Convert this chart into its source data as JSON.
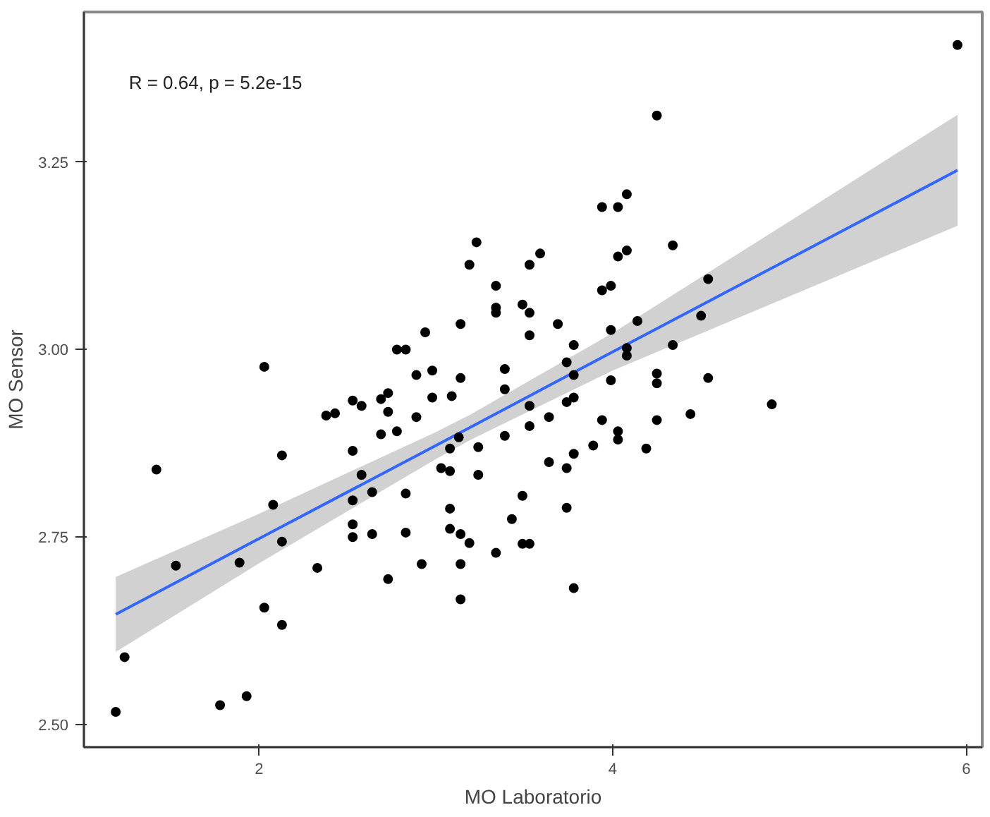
{
  "chart_data": {
    "type": "scatter",
    "xlabel": "MO Laboratorio",
    "ylabel": "MO Sensor",
    "annotations": [
      "R = 0.64, p = 5.2e-15"
    ],
    "xlim": [
      1.01,
      6.09
    ],
    "ylim": [
      2.47,
      3.45
    ],
    "xticks": [
      2,
      4,
      6
    ],
    "yticks": [
      {
        "value": 2.5,
        "label": "2.50"
      },
      {
        "value": 2.75,
        "label": "2.75"
      },
      {
        "value": 3.0,
        "label": "3.00"
      },
      {
        "value": 3.25,
        "label": "3.25"
      }
    ],
    "grid": false,
    "marker": "circle",
    "series": [
      {
        "color": "#000000",
        "x": [
          1.42,
          1.53,
          1.19,
          1.24,
          1.78,
          1.93,
          2.03,
          2.13,
          2.08,
          2.13,
          2.13,
          1.89,
          2.33,
          2.38,
          2.43,
          2.53,
          2.58,
          2.69,
          2.73,
          2.73,
          2.69,
          2.78,
          2.89,
          2.98,
          3.09,
          2.53,
          2.58,
          2.64,
          2.53,
          2.53,
          2.53,
          2.64,
          2.83,
          2.83,
          2.73,
          2.92,
          3.03,
          3.08,
          3.08,
          3.13,
          3.24,
          3.24,
          3.39,
          3.08,
          3.08,
          3.14,
          3.19,
          3.14,
          3.14,
          3.34,
          3.43,
          3.49,
          3.49,
          3.53,
          3.53,
          3.53,
          2.03,
          3.23,
          3.19,
          3.53,
          3.34,
          3.34,
          3.34,
          3.49,
          3.53,
          3.53,
          2.94,
          3.14,
          2.78,
          2.83,
          2.89,
          2.98,
          3.14,
          3.39,
          3.39,
          5.95,
          4.25,
          3.94,
          4.03,
          4.08,
          4.34,
          4.03,
          4.08,
          3.59,
          3.94,
          3.99,
          4.54,
          3.69,
          3.99,
          4.14,
          4.5,
          3.78,
          4.08,
          4.34,
          4.08,
          3.74,
          3.78,
          3.99,
          4.25,
          4.25,
          4.54,
          3.74,
          3.78,
          3.64,
          3.94,
          4.25,
          4.44,
          4.9,
          4.03,
          4.03,
          4.19,
          3.89,
          3.78,
          3.74,
          3.64,
          3.74,
          3.78
        ],
        "values": [
          2.84,
          2.712,
          2.517,
          2.59,
          2.526,
          2.538,
          2.656,
          2.633,
          2.793,
          2.744,
          2.859,
          2.716,
          2.709,
          2.912,
          2.915,
          2.932,
          2.925,
          2.934,
          2.942,
          2.917,
          2.887,
          2.891,
          2.91,
          2.936,
          2.938,
          2.865,
          2.833,
          2.81,
          2.799,
          2.767,
          2.75,
          2.754,
          2.808,
          2.756,
          2.694,
          2.714,
          2.842,
          2.838,
          2.868,
          2.883,
          2.87,
          2.833,
          2.885,
          2.788,
          2.761,
          2.754,
          2.742,
          2.714,
          2.667,
          2.729,
          2.774,
          2.805,
          2.741,
          2.741,
          2.898,
          2.925,
          2.977,
          3.143,
          3.113,
          3.113,
          3.085,
          3.056,
          3.049,
          3.06,
          3.049,
          3.019,
          3.023,
          3.034,
          3.0,
          3.0,
          2.966,
          2.972,
          2.962,
          2.974,
          2.947,
          3.406,
          3.312,
          3.19,
          3.19,
          3.207,
          3.139,
          3.124,
          3.132,
          3.128,
          3.079,
          3.085,
          3.094,
          3.034,
          3.026,
          3.038,
          3.045,
          3.006,
          3.002,
          3.006,
          2.992,
          2.983,
          2.966,
          2.959,
          2.968,
          2.955,
          2.962,
          2.93,
          2.936,
          2.91,
          2.906,
          2.906,
          2.914,
          2.927,
          2.891,
          2.88,
          2.868,
          2.872,
          2.861,
          2.842,
          2.85,
          2.789,
          2.682
        ]
      },
      {
        "type": "line",
        "marker": "none",
        "color": "#3366ff",
        "x": [
          1.19,
          2,
          3,
          3.2,
          4,
          5,
          5.95
        ],
        "values": [
          2.647,
          2.748,
          2.872,
          2.897,
          2.997,
          3.121,
          3.239
        ],
        "lower": [
          2.597,
          2.715,
          2.854,
          2.88,
          2.972,
          3.071,
          3.165
        ],
        "upper": [
          2.697,
          2.781,
          2.89,
          2.914,
          3.022,
          3.171,
          3.313
        ]
      }
    ]
  }
}
